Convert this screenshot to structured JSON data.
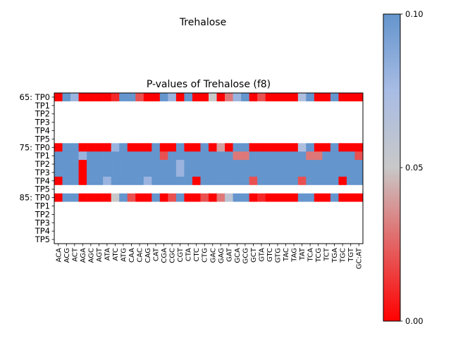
{
  "figure_title": "Trehalose",
  "chart_data": {
    "type": "heatmap",
    "title": "P-values of Trehalose (f8)",
    "columns": [
      "ACA",
      "ACG",
      "ACT",
      "AGA",
      "AGC",
      "AGT",
      "ATA",
      "ATC",
      "ATG",
      "CAA",
      "CAC",
      "CAG",
      "CAT",
      "CGA",
      "CGC",
      "CGT",
      "CTA",
      "CTC",
      "CTG",
      "GAC",
      "GAG",
      "GAT",
      "GCA",
      "GCG",
      "GCT",
      "GTA",
      "GTC",
      "GTG",
      "TAC",
      "TAG",
      "TAT",
      "TCA",
      "TCG",
      "TCT",
      "TGA",
      "TGC",
      "TGT",
      "GC:AT"
    ],
    "rows": [
      "65: TP0",
      "TP1",
      "TP2",
      "TP3",
      "TP4",
      "TP5",
      "75: TP0",
      "TP1",
      "TP2",
      "TP3",
      "TP4",
      "TP5",
      "85: TP0",
      "TP1",
      "TP2",
      "TP3",
      "TP4",
      "TP5"
    ],
    "colorbar": {
      "min": 0.0,
      "max": 0.1,
      "ticks": [
        "0.00",
        "0.05",
        "0.10"
      ],
      "tick_values": [
        0.0,
        0.05,
        0.1
      ],
      "colors": [
        "#ff0000",
        "#c8c8c8",
        "#6495cd"
      ]
    },
    "missing_color": "#ffffff",
    "values": [
      [
        0.0,
        0.1,
        0.08,
        0.0,
        0.0,
        0.0,
        0.0,
        0.01,
        0.1,
        0.1,
        0.02,
        0.0,
        0.0,
        0.1,
        0.08,
        0.0,
        0.1,
        0.0,
        0.0,
        0.05,
        0.0,
        0.03,
        0.08,
        0.1,
        0.0,
        0.02,
        0.0,
        0.0,
        0.0,
        0.0,
        0.07,
        0.1,
        0.0,
        0.0,
        0.1,
        0.0,
        0.0,
        0.0
      ],
      [
        null,
        null,
        null,
        null,
        null,
        null,
        null,
        null,
        null,
        null,
        null,
        null,
        null,
        null,
        null,
        null,
        null,
        null,
        null,
        null,
        null,
        null,
        null,
        null,
        null,
        null,
        null,
        null,
        null,
        null,
        null,
        null,
        null,
        null,
        null,
        null,
        null,
        null
      ],
      [
        null,
        null,
        null,
        null,
        null,
        null,
        null,
        null,
        null,
        null,
        null,
        null,
        null,
        null,
        null,
        null,
        null,
        null,
        null,
        null,
        null,
        null,
        null,
        null,
        null,
        null,
        null,
        null,
        null,
        null,
        null,
        null,
        null,
        null,
        null,
        null,
        null,
        null
      ],
      [
        null,
        null,
        null,
        null,
        null,
        null,
        null,
        null,
        null,
        null,
        null,
        null,
        null,
        null,
        null,
        null,
        null,
        null,
        null,
        null,
        null,
        null,
        null,
        null,
        null,
        null,
        null,
        null,
        null,
        null,
        null,
        null,
        null,
        null,
        null,
        null,
        null,
        null
      ],
      [
        null,
        null,
        null,
        null,
        null,
        null,
        null,
        null,
        null,
        null,
        null,
        null,
        null,
        null,
        null,
        null,
        null,
        null,
        null,
        null,
        null,
        null,
        null,
        null,
        null,
        null,
        null,
        null,
        null,
        null,
        null,
        null,
        null,
        null,
        null,
        null,
        null,
        null
      ],
      [
        null,
        null,
        null,
        null,
        null,
        null,
        null,
        null,
        null,
        null,
        null,
        null,
        null,
        null,
        null,
        null,
        null,
        null,
        null,
        null,
        null,
        null,
        null,
        null,
        null,
        null,
        null,
        null,
        null,
        null,
        null,
        null,
        null,
        null,
        null,
        null,
        null,
        null
      ],
      [
        0.0,
        0.1,
        0.1,
        0.0,
        0.0,
        0.0,
        0.0,
        0.08,
        0.1,
        0.0,
        0.0,
        0.0,
        0.1,
        0.0,
        0.0,
        0.1,
        0.0,
        0.0,
        0.1,
        0.0,
        0.04,
        0.0,
        0.1,
        0.1,
        0.0,
        0.0,
        0.0,
        0.0,
        0.0,
        0.0,
        0.07,
        0.1,
        0.0,
        0.0,
        0.1,
        0.0,
        0.0,
        0.0
      ],
      [
        0.1,
        0.1,
        0.1,
        0.08,
        0.1,
        0.1,
        0.1,
        0.1,
        0.1,
        0.1,
        0.1,
        0.1,
        0.1,
        0.02,
        0.1,
        0.1,
        0.1,
        0.1,
        0.1,
        0.1,
        0.1,
        0.1,
        0.03,
        0.03,
        0.1,
        0.1,
        0.1,
        0.1,
        0.1,
        0.1,
        0.1,
        0.03,
        0.03,
        0.1,
        0.1,
        0.1,
        0.1,
        0.02
      ],
      [
        0.1,
        0.1,
        0.1,
        0.0,
        0.1,
        0.1,
        0.1,
        0.1,
        0.1,
        0.1,
        0.1,
        0.1,
        0.1,
        0.1,
        0.1,
        0.08,
        0.1,
        0.1,
        0.1,
        0.1,
        0.1,
        0.1,
        0.1,
        0.1,
        0.1,
        0.1,
        0.1,
        0.1,
        0.1,
        0.1,
        0.1,
        0.1,
        0.1,
        0.1,
        0.1,
        0.1,
        0.1,
        0.1
      ],
      [
        0.1,
        0.1,
        0.1,
        0.0,
        0.1,
        0.1,
        0.1,
        0.1,
        0.1,
        0.1,
        0.1,
        0.1,
        0.1,
        0.1,
        0.1,
        0.08,
        0.1,
        0.1,
        0.1,
        0.1,
        0.1,
        0.1,
        0.1,
        0.1,
        0.1,
        0.1,
        0.1,
        0.1,
        0.1,
        0.1,
        0.1,
        0.1,
        0.1,
        0.1,
        0.1,
        0.1,
        0.1,
        0.1
      ],
      [
        0.0,
        0.1,
        0.1,
        0.0,
        0.1,
        0.1,
        0.08,
        0.1,
        0.1,
        0.1,
        0.1,
        0.08,
        0.1,
        0.1,
        0.1,
        0.1,
        0.1,
        0.0,
        0.1,
        0.1,
        0.1,
        0.1,
        0.1,
        0.1,
        0.02,
        0.1,
        0.1,
        0.1,
        0.1,
        0.1,
        0.02,
        0.1,
        0.1,
        0.1,
        0.1,
        0.0,
        0.1,
        0.1
      ],
      [
        null,
        null,
        null,
        null,
        null,
        null,
        null,
        null,
        null,
        null,
        null,
        null,
        null,
        null,
        null,
        null,
        null,
        null,
        null,
        null,
        null,
        null,
        null,
        null,
        null,
        null,
        null,
        null,
        null,
        null,
        null,
        null,
        null,
        null,
        null,
        null,
        null,
        null
      ],
      [
        0.0,
        0.1,
        0.1,
        0.0,
        0.0,
        0.0,
        0.0,
        0.05,
        0.1,
        0.02,
        0.0,
        0.0,
        0.1,
        0.0,
        0.02,
        0.1,
        0.0,
        0.0,
        0.02,
        0.0,
        0.03,
        0.06,
        0.1,
        0.1,
        0.0,
        0.01,
        0.0,
        0.0,
        0.0,
        0.0,
        0.1,
        0.1,
        0.0,
        0.0,
        0.1,
        0.0,
        0.0,
        0.0
      ],
      [
        null,
        null,
        null,
        null,
        null,
        null,
        null,
        null,
        null,
        null,
        null,
        null,
        null,
        null,
        null,
        null,
        null,
        null,
        null,
        null,
        null,
        null,
        null,
        null,
        null,
        null,
        null,
        null,
        null,
        null,
        null,
        null,
        null,
        null,
        null,
        null,
        null,
        null
      ],
      [
        null,
        null,
        null,
        null,
        null,
        null,
        null,
        null,
        null,
        null,
        null,
        null,
        null,
        null,
        null,
        null,
        null,
        null,
        null,
        null,
        null,
        null,
        null,
        null,
        null,
        null,
        null,
        null,
        null,
        null,
        null,
        null,
        null,
        null,
        null,
        null,
        null,
        null
      ],
      [
        null,
        null,
        null,
        null,
        null,
        null,
        null,
        null,
        null,
        null,
        null,
        null,
        null,
        null,
        null,
        null,
        null,
        null,
        null,
        null,
        null,
        null,
        null,
        null,
        null,
        null,
        null,
        null,
        null,
        null,
        null,
        null,
        null,
        null,
        null,
        null,
        null,
        null
      ],
      [
        null,
        null,
        null,
        null,
        null,
        null,
        null,
        null,
        null,
        null,
        null,
        null,
        null,
        null,
        null,
        null,
        null,
        null,
        null,
        null,
        null,
        null,
        null,
        null,
        null,
        null,
        null,
        null,
        null,
        null,
        null,
        null,
        null,
        null,
        null,
        null,
        null,
        null
      ],
      [
        null,
        null,
        null,
        null,
        null,
        null,
        null,
        null,
        null,
        null,
        null,
        null,
        null,
        null,
        null,
        null,
        null,
        null,
        null,
        null,
        null,
        null,
        null,
        null,
        null,
        null,
        null,
        null,
        null,
        null,
        null,
        null,
        null,
        null,
        null,
        null,
        null,
        null
      ]
    ]
  }
}
